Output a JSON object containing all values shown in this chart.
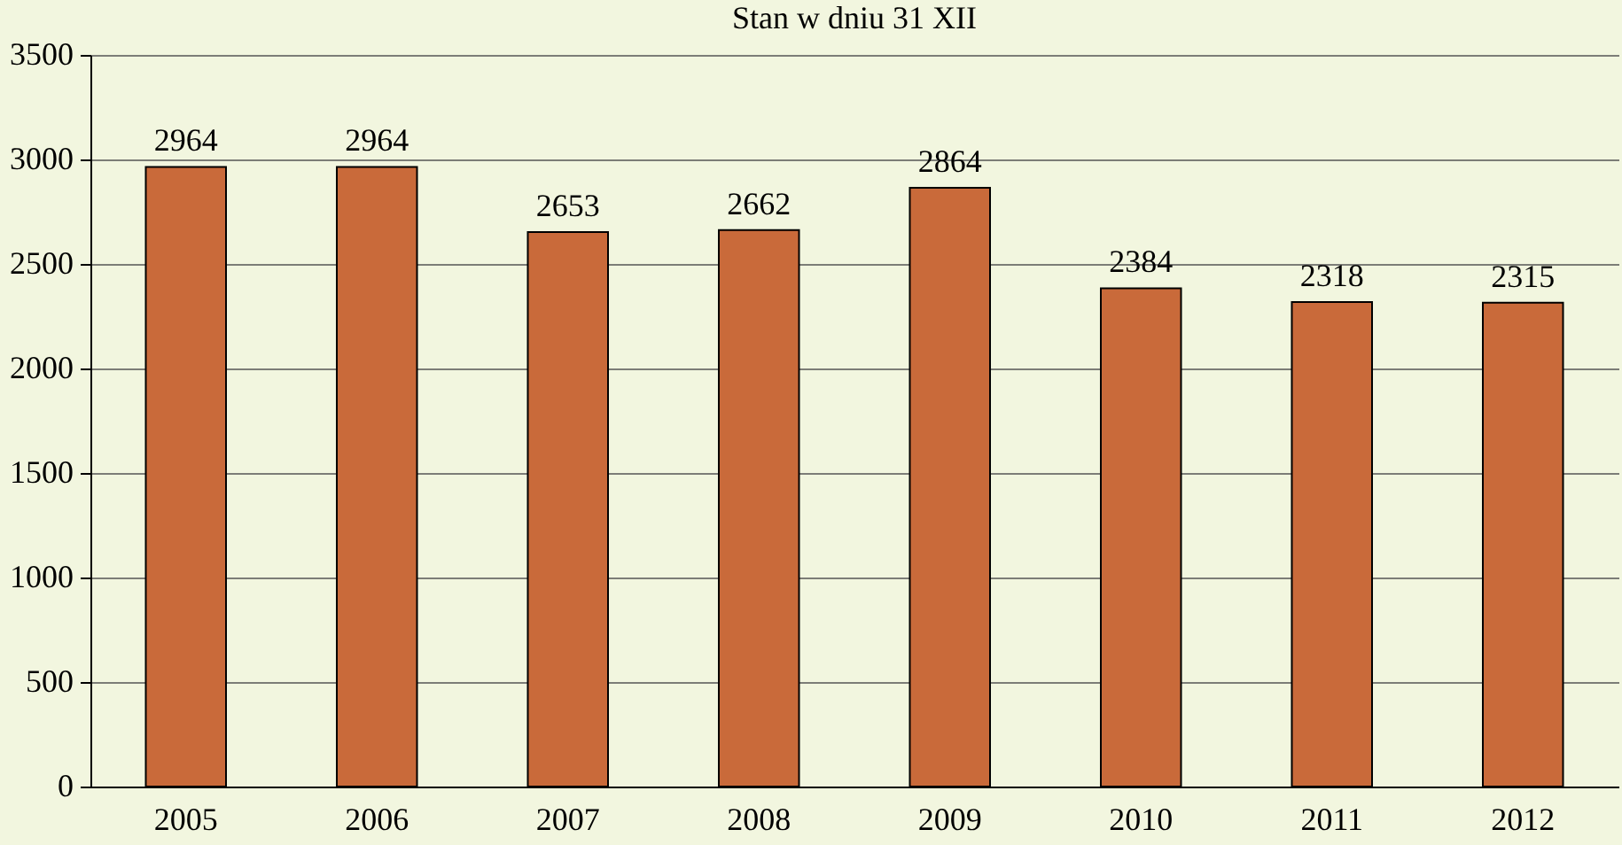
{
  "chart_data": {
    "type": "bar",
    "title": "Stan w dniu 31 XII",
    "categories": [
      "2005",
      "2006",
      "2007",
      "2008",
      "2009",
      "2010",
      "2011",
      "2012"
    ],
    "values": [
      2964,
      2964,
      2653,
      2662,
      2864,
      2384,
      2318,
      2315
    ],
    "color": "#c96a3a",
    "ylim": [
      0,
      3500
    ],
    "yticks": [
      0,
      500,
      1000,
      1500,
      2000,
      2500,
      3000,
      3500
    ],
    "grid": "y",
    "data_labels": true
  }
}
